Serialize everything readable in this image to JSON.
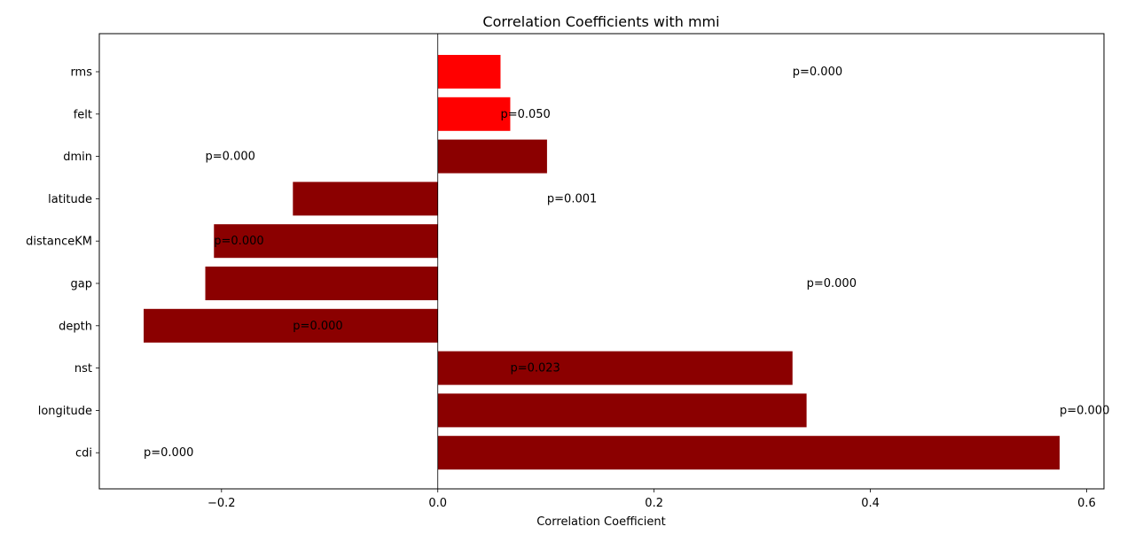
{
  "chart_data": {
    "type": "bar",
    "orientation": "horizontal",
    "title": "Correlation Coefficients with mmi",
    "xlabel": "Correlation Coefficient",
    "ylabel": "",
    "xlim": [
      -0.313,
      0.616
    ],
    "xticks": [
      -0.2,
      0.0,
      0.2,
      0.4,
      0.6
    ],
    "xtick_labels": [
      "−0.2",
      "0.0",
      "0.2",
      "0.4",
      "0.6"
    ],
    "categories": [
      "rms",
      "felt",
      "dmin",
      "latitude",
      "distanceKM",
      "gap",
      "depth",
      "nst",
      "longitude",
      "cdi"
    ],
    "values": [
      0.058,
      0.067,
      0.101,
      -0.134,
      -0.207,
      -0.215,
      -0.272,
      0.328,
      0.341,
      0.575
    ],
    "bar_colors": [
      "#ff0000",
      "#ff0000",
      "#8b0000",
      "#8b0000",
      "#8b0000",
      "#8b0000",
      "#8b0000",
      "#8b0000",
      "#8b0000",
      "#8b0000"
    ],
    "annotations": [
      {
        "text": "p=0.000",
        "x": 0.328,
        "category": "rms"
      },
      {
        "text": "p=0.050",
        "x": 0.058,
        "category": "felt"
      },
      {
        "text": "p=0.000",
        "x": -0.215,
        "category": "dmin"
      },
      {
        "text": "p=0.001",
        "x": 0.101,
        "category": "latitude"
      },
      {
        "text": "p=0.000",
        "x": -0.207,
        "category": "distanceKM"
      },
      {
        "text": "p=0.000",
        "x": 0.341,
        "category": "gap"
      },
      {
        "text": "p=0.000",
        "x": -0.134,
        "category": "depth"
      },
      {
        "text": "p=0.023",
        "x": 0.067,
        "category": "nst"
      },
      {
        "text": "p=0.000",
        "x": 0.575,
        "category": "longitude"
      },
      {
        "text": "p=0.000",
        "x": -0.272,
        "category": "cdi"
      }
    ],
    "zero_line": true,
    "grid": false,
    "legend": "none"
  }
}
